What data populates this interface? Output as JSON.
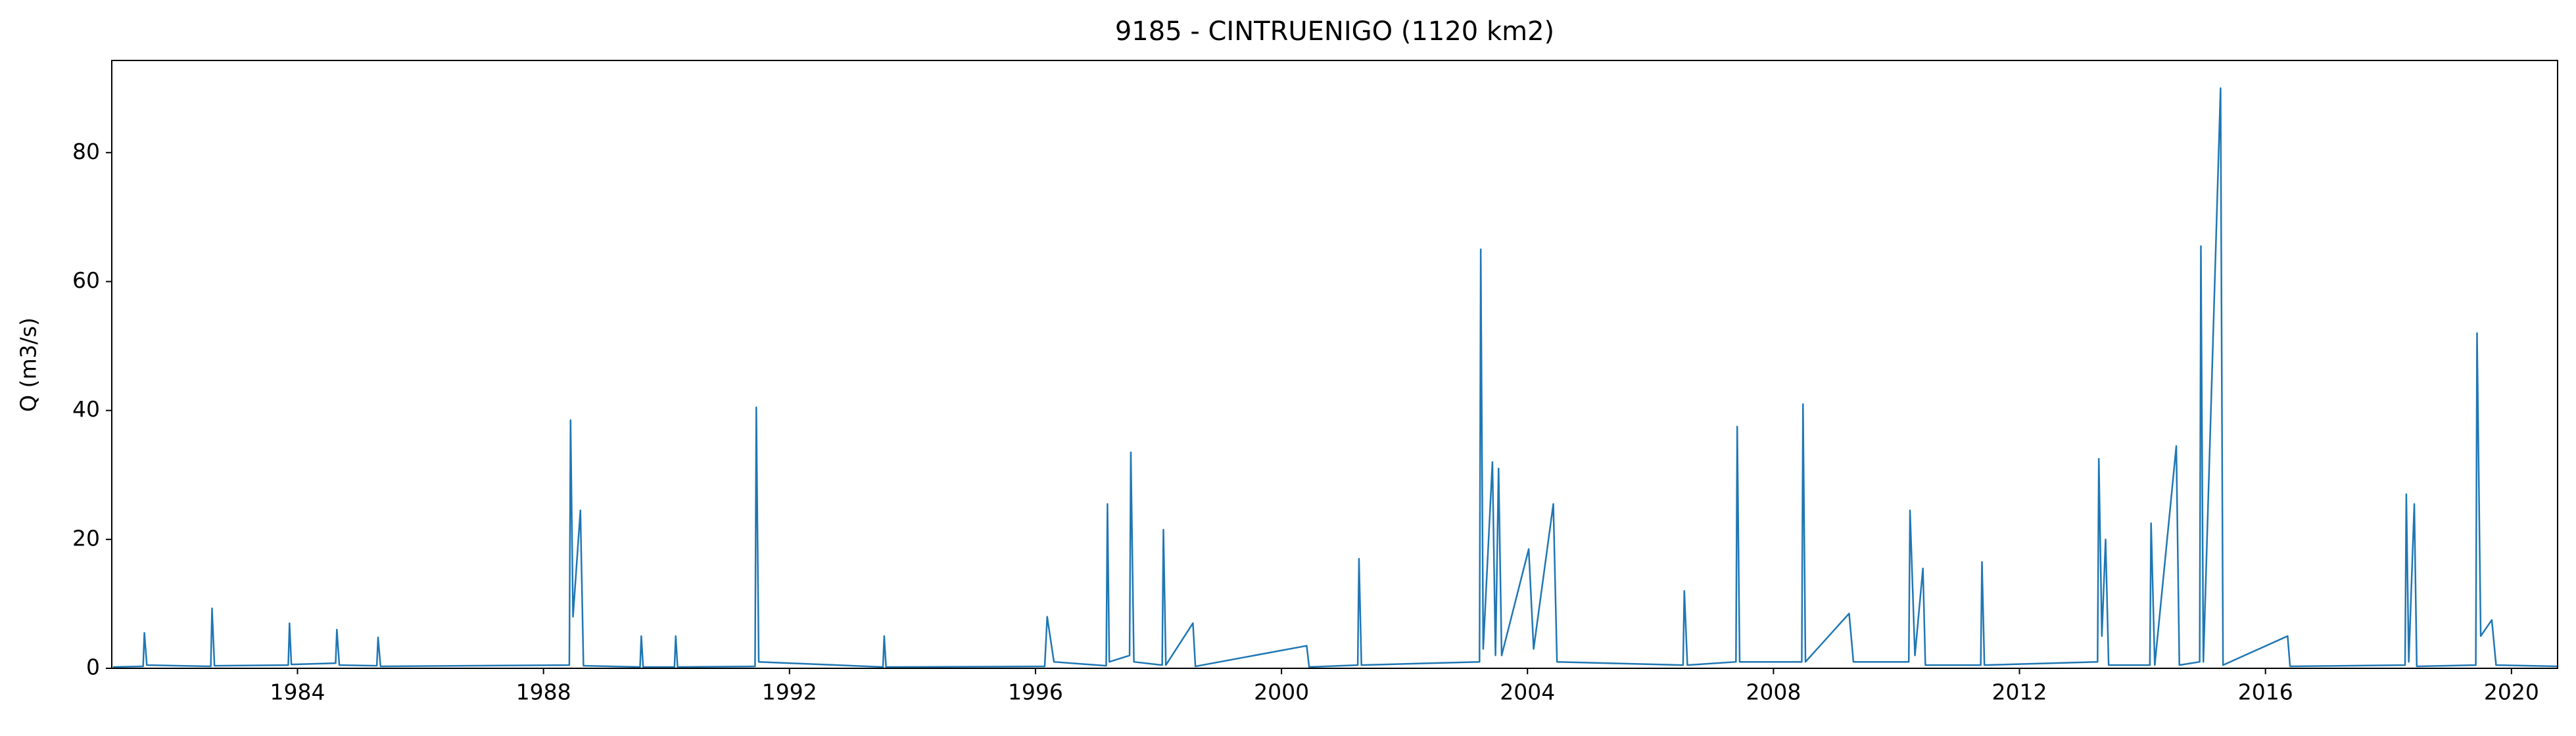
{
  "chart_data": {
    "type": "line",
    "title": "9185 - CINTRUENIGO (1120 km2)",
    "y_label": "Q (m3/s)",
    "color": "#1f77b4",
    "x": [
      1981.0,
      1981.49,
      1981.51,
      1981.55,
      1982.59,
      1982.61,
      1982.65,
      1983.85,
      1983.87,
      1983.9,
      1984.62,
      1984.64,
      1984.68,
      1985.29,
      1985.31,
      1985.35,
      1988.42,
      1988.44,
      1988.48,
      1988.6,
      1988.65,
      1989.57,
      1989.59,
      1989.62,
      1990.13,
      1990.15,
      1990.18,
      1991.44,
      1991.46,
      1991.5,
      1993.52,
      1993.54,
      1993.57,
      1996.15,
      1996.19,
      1996.3,
      1997.15,
      1997.17,
      1997.2,
      1997.53,
      1997.55,
      1997.6,
      1998.06,
      1998.08,
      1998.12,
      1998.56,
      1998.6,
      2000.41,
      2000.45,
      2001.24,
      2001.26,
      2001.3,
      2003.22,
      2003.24,
      2003.28,
      2003.43,
      2003.48,
      2003.53,
      2003.58,
      2004.02,
      2004.1,
      2004.42,
      2004.48,
      2006.53,
      2006.55,
      2006.6,
      2007.39,
      2007.41,
      2007.45,
      2008.46,
      2008.48,
      2008.52,
      2009.23,
      2009.3,
      2010.2,
      2010.22,
      2010.3,
      2010.43,
      2010.47,
      2011.37,
      2011.39,
      2011.43,
      2013.27,
      2013.29,
      2013.34,
      2013.4,
      2013.45,
      2014.12,
      2014.14,
      2014.2,
      2014.55,
      2014.6,
      2014.93,
      2014.95,
      2014.99,
      2015.27,
      2015.31,
      2016.36,
      2016.4,
      2018.27,
      2018.29,
      2018.33,
      2018.42,
      2018.46,
      2019.42,
      2019.44,
      2019.5,
      2019.68,
      2019.75,
      2020.75
    ],
    "values": [
      0.2,
      0.3,
      5.5,
      0.5,
      0.3,
      9.3,
      0.4,
      0.5,
      7,
      0.6,
      0.8,
      6,
      0.5,
      0.4,
      4.8,
      0.3,
      0.5,
      38.5,
      8,
      24.5,
      0.4,
      0.2,
      5,
      0.2,
      0.2,
      5,
      0.2,
      0.3,
      40.5,
      1,
      0.2,
      5,
      0.2,
      0.3,
      8,
      1,
      0.4,
      25.5,
      1,
      2,
      33.5,
      1,
      0.5,
      21.5,
      0.5,
      7,
      0.3,
      3.5,
      0.2,
      0.5,
      17,
      0.5,
      1,
      65,
      3,
      32,
      2,
      31,
      2,
      18.5,
      3,
      25.5,
      1,
      0.5,
      12,
      0.5,
      1,
      37.5,
      1,
      1,
      41,
      1,
      8.5,
      1,
      1,
      24.5,
      2,
      15.5,
      0.5,
      0.5,
      16.5,
      0.5,
      1,
      32.5,
      5,
      20,
      0.5,
      0.5,
      22.5,
      0.5,
      34.5,
      0.5,
      1,
      65.5,
      1,
      90,
      0.5,
      5,
      0.3,
      0.5,
      27,
      1,
      25.5,
      0.3,
      0.5,
      52,
      5,
      7.5,
      0.5,
      0.3
    ],
    "xlim": [
      1980.98,
      2020.75
    ],
    "xticks": [
      1984,
      1988,
      1992,
      1996,
      2000,
      2004,
      2008,
      2012,
      2016,
      2020
    ],
    "ylim": [
      0,
      94.3
    ],
    "yticks": [
      0,
      20,
      40,
      60,
      80
    ]
  }
}
